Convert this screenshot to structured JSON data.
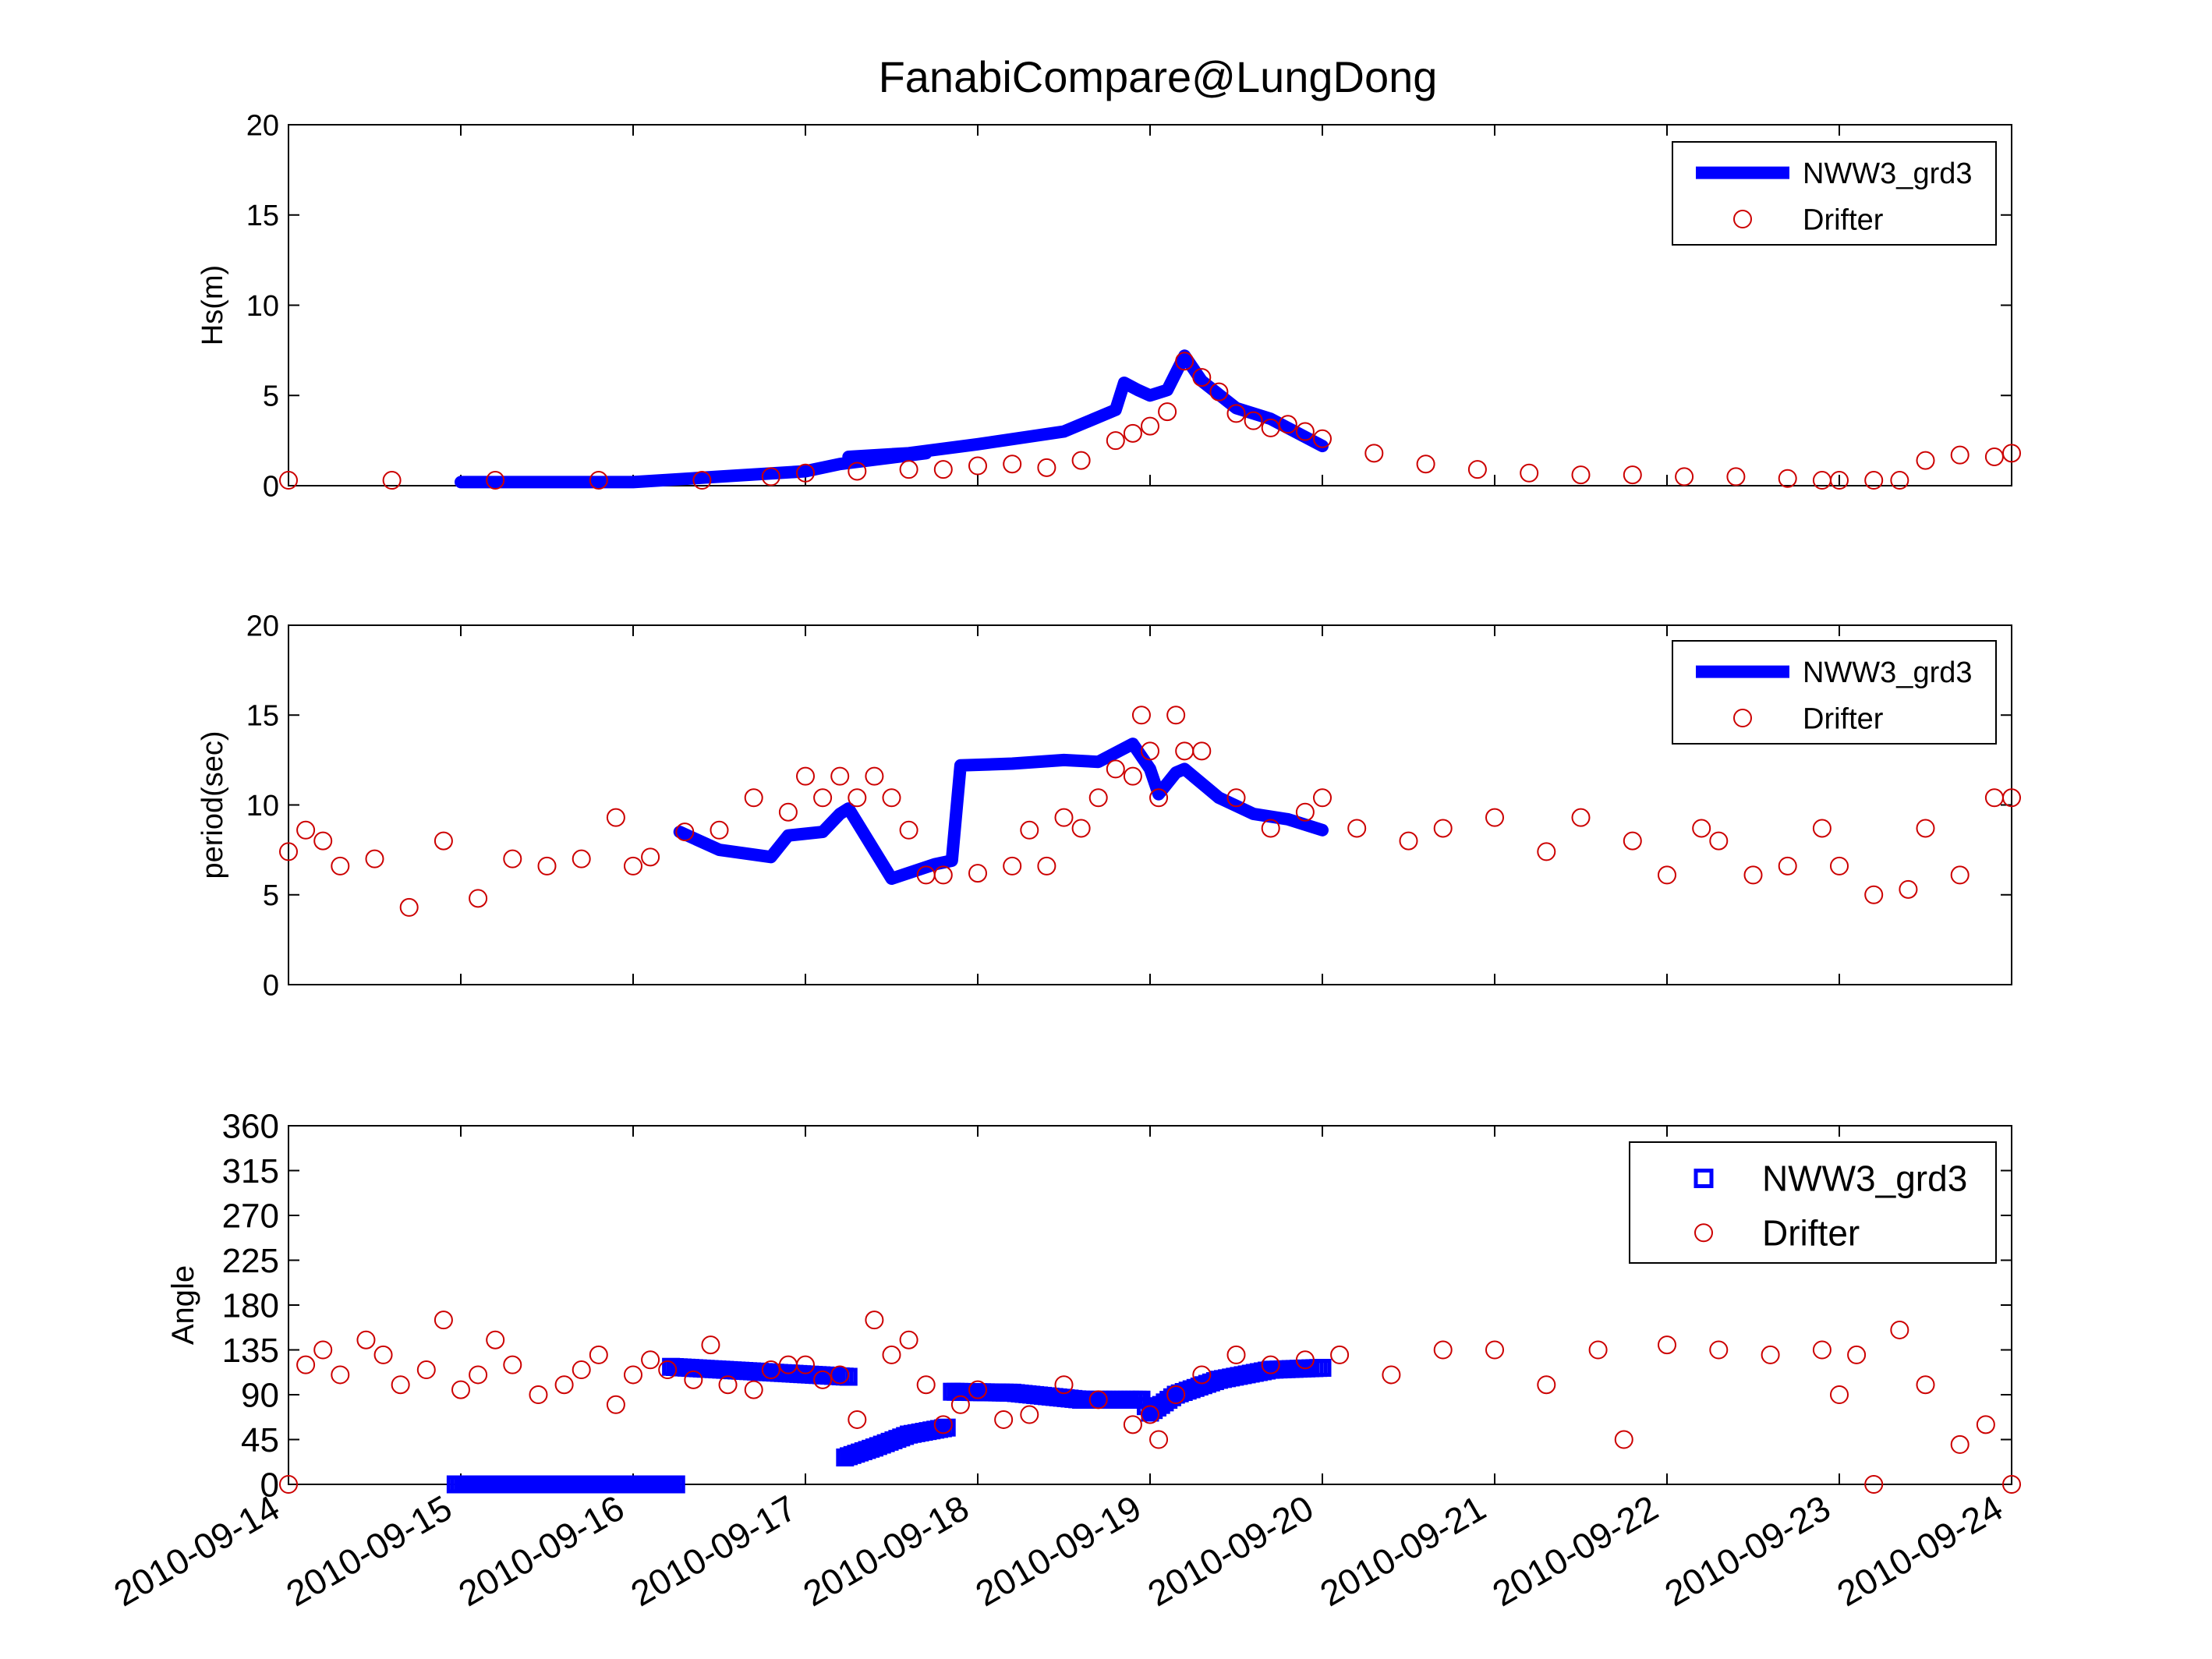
{
  "figure": {
    "title": "FanabiCompare@LungDong",
    "colors": {
      "model": "#0000ff",
      "drifter": "#cc0000",
      "axis": "#000000"
    }
  },
  "chart_data": [
    {
      "type": "line",
      "ylabel": "Hs(m)",
      "xlabel": "",
      "ylim": [
        0,
        20
      ],
      "yticks": [
        "0",
        "5",
        "10",
        "15",
        "20"
      ],
      "xlim": [
        "2010-09-14",
        "2010-09-24"
      ],
      "legend": {
        "placement": "top-right",
        "entries": [
          "NWW3_grd3",
          "Drifter"
        ]
      },
      "series": [
        {
          "name": "NWW3_grd3",
          "style": "thick-line",
          "x": [
            1.0,
            2.0,
            2.5,
            3.0,
            3.2,
            3.7,
            3.3,
            3.25,
            3.6,
            4.0,
            4.5,
            4.8,
            4.85,
            4.93,
            5.0,
            5.1,
            5.2,
            5.3,
            5.5,
            5.7,
            6.0
          ],
          "y": [
            0.2,
            0.2,
            0.5,
            0.8,
            1.2,
            1.8,
            1.6,
            1.6,
            1.8,
            2.3,
            3.0,
            4.2,
            5.7,
            5.3,
            5.0,
            5.3,
            7.2,
            5.8,
            4.3,
            3.7,
            2.2
          ]
        },
        {
          "name": "Drifter",
          "style": "circles",
          "x": [
            0.0,
            0.6,
            1.2,
            1.8,
            2.4,
            2.8,
            3.0,
            3.3,
            3.6,
            3.8,
            4.0,
            4.2,
            4.4,
            4.6,
            4.8,
            4.9,
            5.0,
            5.1,
            5.2,
            5.3,
            5.4,
            5.5,
            5.6,
            5.7,
            5.8,
            5.9,
            6.0,
            6.3,
            6.6,
            6.9,
            7.2,
            7.5,
            7.8,
            8.1,
            8.4,
            8.7,
            8.9,
            9.0,
            9.2,
            9.35,
            9.5,
            9.7,
            9.9,
            10.0
          ],
          "y": [
            0.3,
            0.3,
            0.3,
            0.3,
            0.3,
            0.5,
            0.7,
            0.8,
            0.9,
            0.9,
            1.1,
            1.2,
            1.0,
            1.4,
            2.5,
            2.9,
            3.3,
            4.1,
            6.9,
            6.0,
            5.2,
            4.0,
            3.6,
            3.2,
            3.4,
            3.0,
            2.6,
            1.8,
            1.2,
            0.9,
            0.7,
            0.6,
            0.6,
            0.5,
            0.5,
            0.4,
            0.3,
            0.3,
            0.3,
            0.3,
            1.4,
            1.7,
            1.6,
            1.8
          ]
        }
      ]
    },
    {
      "type": "line",
      "ylabel": "period(sec)",
      "xlabel": "",
      "ylim": [
        0,
        20
      ],
      "yticks": [
        "0",
        "5",
        "10",
        "15",
        "20"
      ],
      "xlim": [
        "2010-09-14",
        "2010-09-24"
      ],
      "legend": {
        "placement": "top-right",
        "entries": [
          "NWW3_grd3",
          "Drifter"
        ]
      },
      "series": [
        {
          "name": "NWW3_grd3",
          "style": "thick-line",
          "x": [
            2.27,
            2.5,
            2.8,
            2.9,
            3.1,
            3.2,
            3.25,
            3.5,
            3.75,
            3.85,
            3.9,
            4.2,
            4.5,
            4.7,
            4.9,
            5.0,
            5.05,
            5.15,
            5.2,
            5.4,
            5.6,
            5.8,
            6.0
          ],
          "y": [
            8.5,
            7.5,
            7.1,
            8.3,
            8.5,
            9.5,
            9.8,
            5.9,
            6.7,
            6.9,
            12.2,
            12.3,
            12.5,
            12.4,
            13.4,
            12.0,
            10.6,
            11.8,
            12.0,
            10.4,
            9.5,
            9.2,
            8.6
          ]
        },
        {
          "name": "Drifter",
          "style": "circles",
          "x": [
            0.0,
            0.1,
            0.2,
            0.3,
            0.5,
            0.7,
            0.9,
            1.1,
            1.3,
            1.5,
            1.7,
            1.9,
            2.0,
            2.1,
            2.3,
            2.5,
            2.7,
            2.9,
            3.0,
            3.1,
            3.2,
            3.3,
            3.4,
            3.5,
            3.6,
            3.7,
            3.8,
            4.0,
            4.2,
            4.3,
            4.4,
            4.5,
            4.6,
            4.7,
            4.8,
            4.9,
            4.95,
            5.0,
            5.05,
            5.15,
            5.2,
            5.3,
            5.5,
            5.7,
            5.9,
            6.0,
            6.2,
            6.5,
            6.7,
            7.0,
            7.3,
            7.5,
            7.8,
            8.0,
            8.2,
            8.3,
            8.5,
            8.7,
            8.9,
            9.0,
            9.2,
            9.4,
            9.5,
            9.7,
            9.9,
            10.0
          ],
          "y": [
            7.4,
            8.6,
            8.0,
            6.6,
            7.0,
            4.3,
            8.0,
            4.8,
            7.0,
            6.6,
            7.0,
            9.3,
            6.6,
            7.1,
            8.5,
            8.6,
            10.4,
            9.6,
            11.6,
            10.4,
            11.6,
            10.4,
            11.6,
            10.4,
            8.6,
            6.1,
            6.1,
            6.2,
            6.6,
            8.6,
            6.6,
            9.3,
            8.7,
            10.4,
            12.0,
            11.6,
            15.0,
            13.0,
            10.4,
            15.0,
            13.0,
            13.0,
            10.4,
            8.7,
            9.6,
            10.4,
            8.7,
            8.0,
            8.7,
            9.3,
            7.4,
            9.3,
            8.0,
            6.1,
            8.7,
            8.0,
            6.1,
            6.6,
            8.7,
            6.6,
            5.0,
            5.3,
            8.7,
            6.1,
            10.4,
            10.4
          ]
        }
      ]
    },
    {
      "type": "scatter",
      "ylabel": "Angle",
      "xlabel": "",
      "ylim": [
        0,
        360
      ],
      "yticks": [
        "0",
        "45",
        "90",
        "135",
        "180",
        "225",
        "270",
        "315",
        "360"
      ],
      "xlim": [
        "2010-09-14",
        "2010-09-24"
      ],
      "xtick_labels": [
        "2010-09-14",
        "2010-09-15",
        "2010-09-16",
        "2010-09-17",
        "2010-09-18",
        "2010-09-19",
        "2010-09-20",
        "2010-09-21",
        "2010-09-22",
        "2010-09-23",
        "2010-09-24"
      ],
      "legend": {
        "placement": "top-right",
        "entries": [
          "NWW3_grd3",
          "Drifter"
        ]
      },
      "series": [
        {
          "name": "NWW3_grd3",
          "style": "squares",
          "segments": [
            {
              "x": [
                0.97,
                2.25
              ],
              "y": [
                0,
                0
              ]
            },
            {
              "x": [
                2.22,
                3.25
              ],
              "y": [
                118,
                108
              ]
            },
            {
              "x": [
                3.23,
                3.4,
                3.6,
                3.82
              ],
              "y": [
                27,
                37,
                50,
                57
              ]
            },
            {
              "x": [
                3.85,
                4.2,
                4.6,
                4.95,
                5.0,
                5.15,
                5.4,
                5.7,
                6.0
              ],
              "y": [
                93,
                92,
                85,
                85,
                72,
                90,
                105,
                115,
                117
              ]
            }
          ]
        },
        {
          "name": "Drifter",
          "style": "circles",
          "x": [
            0.0,
            0.1,
            0.2,
            0.3,
            0.45,
            0.55,
            0.65,
            0.8,
            0.9,
            1.0,
            1.1,
            1.2,
            1.3,
            1.45,
            1.6,
            1.7,
            1.8,
            1.9,
            2.0,
            2.1,
            2.2,
            2.35,
            2.45,
            2.55,
            2.7,
            2.8,
            2.9,
            3.0,
            3.1,
            3.2,
            3.3,
            3.4,
            3.5,
            3.6,
            3.7,
            3.8,
            3.9,
            4.0,
            4.15,
            4.3,
            4.5,
            4.7,
            4.9,
            5.0,
            5.05,
            5.15,
            5.3,
            5.5,
            5.7,
            5.9,
            6.1,
            6.4,
            6.7,
            7.0,
            7.3,
            7.6,
            7.75,
            8.0,
            8.3,
            8.6,
            8.9,
            9.0,
            9.1,
            9.2,
            9.35,
            9.5,
            9.7,
            9.85,
            10.0
          ],
          "y": [
            0,
            120,
            135,
            110,
            145,
            130,
            100,
            115,
            165,
            95,
            110,
            145,
            120,
            90,
            100,
            115,
            130,
            80,
            110,
            125,
            115,
            105,
            140,
            100,
            95,
            115,
            120,
            120,
            105,
            110,
            65,
            165,
            130,
            145,
            100,
            60,
            80,
            95,
            65,
            70,
            100,
            85,
            60,
            70,
            45,
            90,
            110,
            130,
            120,
            125,
            130,
            110,
            135,
            135,
            100,
            135,
            45,
            140,
            135,
            130,
            135,
            90,
            130,
            0,
            155,
            100,
            40,
            60,
            0
          ]
        }
      ]
    }
  ]
}
